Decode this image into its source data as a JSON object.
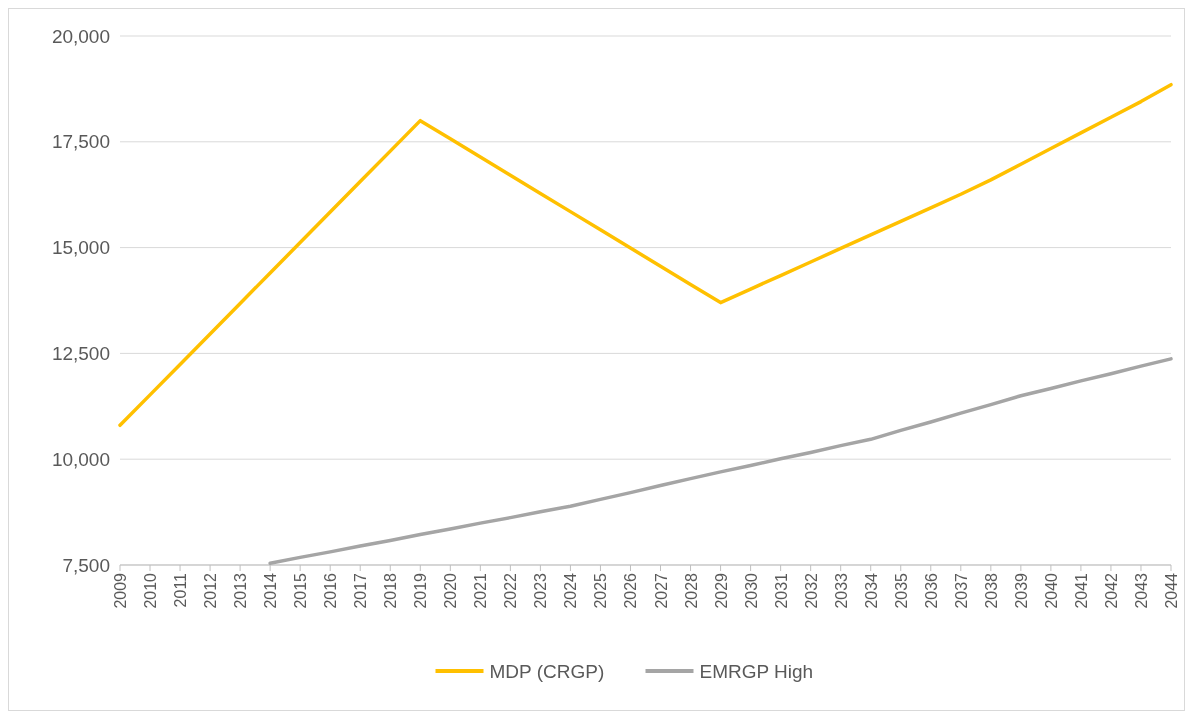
{
  "chart_data": {
    "type": "line",
    "categories": [
      "2009",
      "2010",
      "2011",
      "2012",
      "2013",
      "2014",
      "2015",
      "2016",
      "2017",
      "2018",
      "2019",
      "2020",
      "2021",
      "2022",
      "2023",
      "2024",
      "2025",
      "2026",
      "2027",
      "2028",
      "2029",
      "2030",
      "2031",
      "2032",
      "2033",
      "2034",
      "2035",
      "2036",
      "2037",
      "2038",
      "2039",
      "2040",
      "2041",
      "2042",
      "2043",
      "2044"
    ],
    "series": [
      {
        "name": "MDP (CRGP)",
        "color": "#ffc000",
        "values": [
          10800,
          11520,
          12240,
          12960,
          13680,
          14400,
          15120,
          15840,
          16560,
          17280,
          18000,
          17570,
          17140,
          16710,
          16280,
          15850,
          15420,
          14990,
          14560,
          14130,
          13700,
          14020,
          14340,
          14660,
          14980,
          15300,
          15620,
          15940,
          16260,
          16600,
          16970,
          17340,
          17710,
          18080,
          18450,
          18850
        ]
      },
      {
        "name": "EMRGP High",
        "color": "#a5a5a5",
        "values": [
          null,
          null,
          null,
          null,
          null,
          7540,
          7680,
          7810,
          7950,
          8080,
          8220,
          8350,
          8490,
          8620,
          8760,
          8890,
          9050,
          9210,
          9380,
          9540,
          9700,
          9850,
          10010,
          10160,
          10320,
          10470,
          10680,
          10880,
          11090,
          11290,
          11500,
          11670,
          11850,
          12020,
          12200,
          12370
        ]
      }
    ],
    "ylim": [
      7500,
      20000
    ],
    "yticks": [
      {
        "value": 7500,
        "label": "7,500"
      },
      {
        "value": 10000,
        "label": "10,000"
      },
      {
        "value": 12500,
        "label": "12,500"
      },
      {
        "value": 15000,
        "label": "15,000"
      },
      {
        "value": 17500,
        "label": "17,500"
      },
      {
        "value": 20000,
        "label": "20,000"
      }
    ],
    "grid": "y",
    "legend": "bottom",
    "marker": "none",
    "line_style": "solid"
  }
}
